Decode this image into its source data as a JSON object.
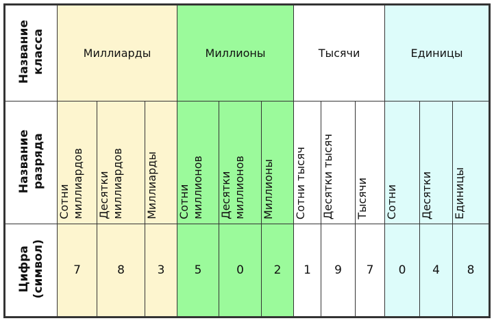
{
  "row_headers": {
    "class_name": "Название\nкласса",
    "rank_name": "Название\nразряда",
    "digit": "Цифра\n(символ)"
  },
  "classes": [
    {
      "label": "Миллиарды",
      "color": "#fdf5cf"
    },
    {
      "label": "Миллионы",
      "color": "#9bfa9b"
    },
    {
      "label": "Тысячи",
      "color": "#ffffff"
    },
    {
      "label": "Единицы",
      "color": "#ddfcfa"
    }
  ],
  "ranks": [
    "Сотни\nмиллиардов",
    "Десятки\nмиллиардов",
    "Миллиарды",
    "Сотни\nмиллионов",
    "Десятки\nмиллионов",
    "Миллионы",
    "Сотни тысяч",
    "Десятки тысяч",
    "Тысячи",
    "Сотни",
    "Десятки",
    "Единицы"
  ],
  "digits": [
    "7",
    "8",
    "3",
    "5",
    "0",
    "2",
    "1",
    "9",
    "7",
    "0",
    "4",
    "8"
  ]
}
